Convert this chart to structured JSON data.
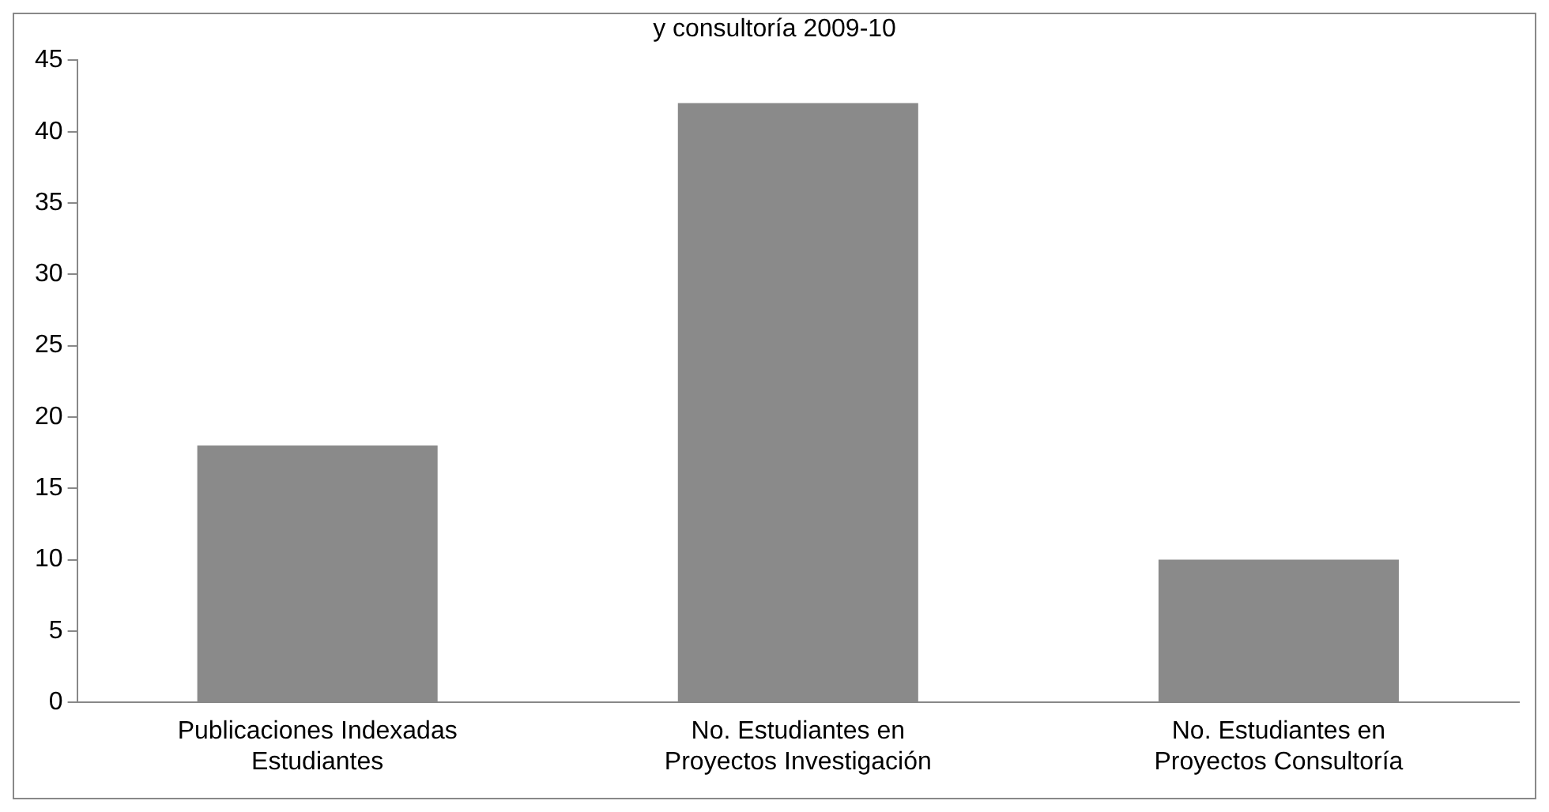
{
  "chart_data": {
    "type": "bar",
    "title": "y consultoría 2009-10",
    "categories": [
      "Publicaciones Indexadas Estudiantes",
      "No. Estudiantes en Proyectos Investigación",
      "No. Estudiantes en Proyectos Consultoría"
    ],
    "values": [
      18,
      42,
      10
    ],
    "color": "#8a8a8a",
    "ylim": [
      0,
      45
    ],
    "yticks": [
      0,
      5,
      10,
      15,
      20,
      25,
      30,
      35,
      40,
      45
    ],
    "grid": false,
    "legend": false
  }
}
